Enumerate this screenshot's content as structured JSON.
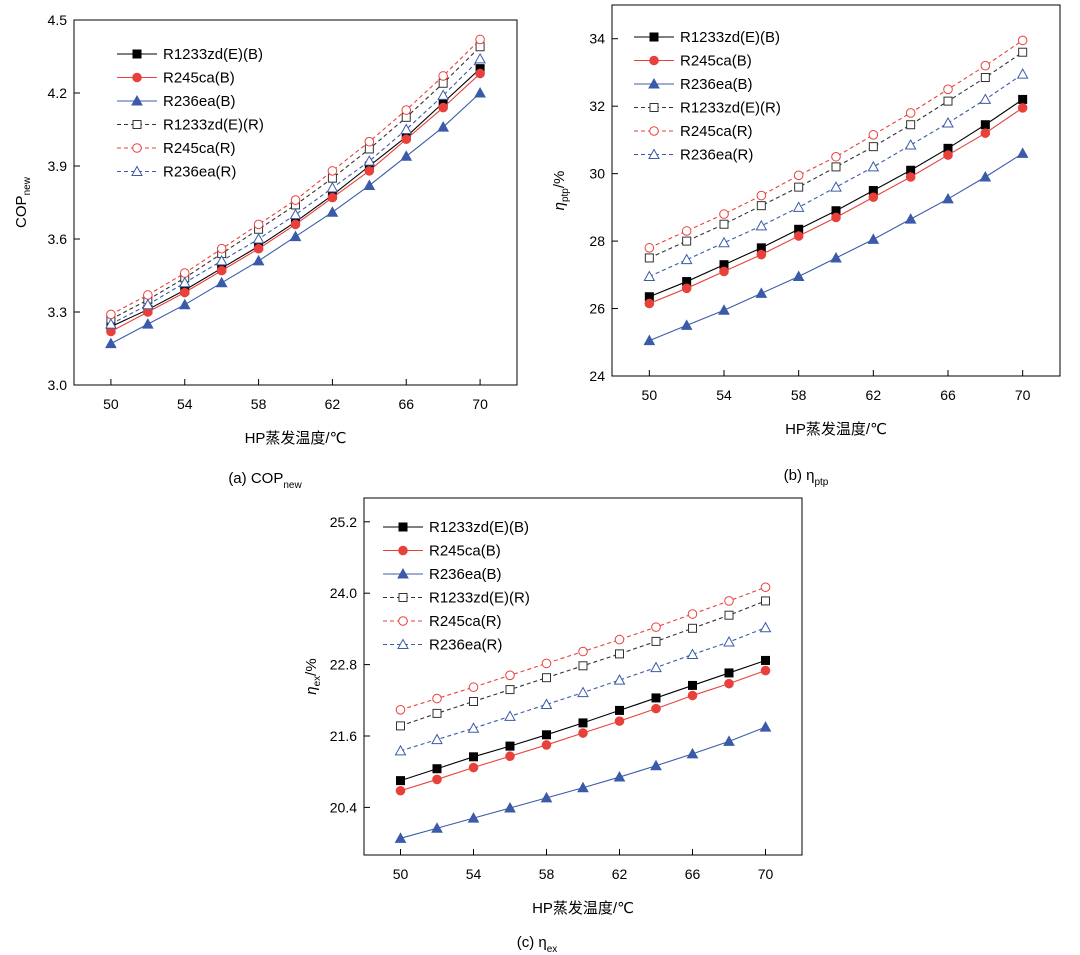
{
  "chart_data": [
    {
      "type": "line",
      "caption": "(a) COP",
      "caption_sub": "new",
      "ylabel": "COP",
      "ylabel_sub": "new",
      "ylabel_suffix": "",
      "xlabel": "HP蒸发温度/℃",
      "xlim": [
        48,
        72
      ],
      "xticks": [
        "50",
        "54",
        "58",
        "62",
        "66",
        "70"
      ],
      "ylim": [
        3.0,
        4.5
      ],
      "yticks": [
        "3.0",
        "3.3",
        "3.6",
        "3.9",
        "4.2",
        "4.5"
      ],
      "x": [
        50,
        52,
        54,
        56,
        58,
        60,
        62,
        64,
        66,
        68,
        70
      ],
      "series": [
        {
          "name": "R1233zd(E)(B)",
          "marker": "square",
          "filled": true,
          "dashed": false,
          "color": "#000000",
          "values": [
            3.24,
            3.31,
            3.39,
            3.48,
            3.57,
            3.67,
            3.78,
            3.9,
            4.02,
            4.16,
            4.3
          ]
        },
        {
          "name": "R245ca(B)",
          "marker": "circle",
          "filled": true,
          "dashed": false,
          "color": "#e8413c",
          "values": [
            3.22,
            3.3,
            3.38,
            3.47,
            3.56,
            3.66,
            3.77,
            3.88,
            4.01,
            4.14,
            4.28
          ]
        },
        {
          "name": "R236ea(B)",
          "marker": "triangle",
          "filled": true,
          "dashed": false,
          "color": "#3b5ba9",
          "values": [
            3.17,
            3.25,
            3.33,
            3.42,
            3.51,
            3.61,
            3.71,
            3.82,
            3.94,
            4.06,
            4.2
          ]
        },
        {
          "name": "R1233zd(E)(R)",
          "marker": "square",
          "filled": false,
          "dashed": true,
          "color": "#333333",
          "values": [
            3.27,
            3.35,
            3.44,
            3.54,
            3.64,
            3.74,
            3.85,
            3.97,
            4.1,
            4.24,
            4.39
          ]
        },
        {
          "name": "R245ca(R)",
          "marker": "circle",
          "filled": false,
          "dashed": true,
          "color": "#e8413c",
          "values": [
            3.29,
            3.37,
            3.46,
            3.56,
            3.66,
            3.76,
            3.88,
            4.0,
            4.13,
            4.27,
            4.42
          ]
        },
        {
          "name": "R236ea(R)",
          "marker": "triangle",
          "filled": false,
          "dashed": true,
          "color": "#3b5ba9",
          "values": [
            3.25,
            3.33,
            3.42,
            3.51,
            3.6,
            3.7,
            3.81,
            3.92,
            4.05,
            4.19,
            4.34
          ]
        }
      ]
    },
    {
      "type": "line",
      "caption": "(b) η",
      "caption_sub": "ptp",
      "ylabel": "η",
      "ylabel_sub": "ptp",
      "ylabel_suffix": "/%",
      "xlabel": "HP蒸发温度/℃",
      "xlim": [
        48,
        72
      ],
      "xticks": [
        "50",
        "54",
        "58",
        "62",
        "66",
        "70"
      ],
      "ylim": [
        24,
        35
      ],
      "yticks": [
        "24",
        "26",
        "28",
        "30",
        "32",
        "34"
      ],
      "x": [
        50,
        52,
        54,
        56,
        58,
        60,
        62,
        64,
        66,
        68,
        70
      ],
      "series": [
        {
          "name": "R1233zd(E)(B)",
          "marker": "square",
          "filled": true,
          "dashed": false,
          "color": "#000000",
          "values": [
            26.35,
            26.8,
            27.3,
            27.8,
            28.35,
            28.9,
            29.5,
            30.1,
            30.75,
            31.45,
            32.2
          ]
        },
        {
          "name": "R245ca(B)",
          "marker": "circle",
          "filled": true,
          "dashed": false,
          "color": "#e8413c",
          "values": [
            26.15,
            26.6,
            27.1,
            27.6,
            28.15,
            28.7,
            29.3,
            29.9,
            30.55,
            31.2,
            31.95
          ]
        },
        {
          "name": "R236ea(B)",
          "marker": "triangle",
          "filled": true,
          "dashed": false,
          "color": "#3b5ba9",
          "values": [
            25.05,
            25.5,
            25.95,
            26.45,
            26.95,
            27.5,
            28.05,
            28.65,
            29.25,
            29.9,
            30.6
          ]
        },
        {
          "name": "R1233zd(E)(R)",
          "marker": "square",
          "filled": false,
          "dashed": true,
          "color": "#333333",
          "values": [
            27.5,
            28.0,
            28.5,
            29.05,
            29.6,
            30.2,
            30.8,
            31.45,
            32.15,
            32.85,
            33.6
          ]
        },
        {
          "name": "R245ca(R)",
          "marker": "circle",
          "filled": false,
          "dashed": true,
          "color": "#e8413c",
          "values": [
            27.8,
            28.3,
            28.8,
            29.35,
            29.95,
            30.5,
            31.15,
            31.8,
            32.5,
            33.2,
            33.95
          ]
        },
        {
          "name": "R236ea(R)",
          "marker": "triangle",
          "filled": false,
          "dashed": true,
          "color": "#3b5ba9",
          "values": [
            26.95,
            27.45,
            27.95,
            28.45,
            29.0,
            29.6,
            30.2,
            30.85,
            31.5,
            32.2,
            32.95
          ]
        }
      ]
    },
    {
      "type": "line",
      "caption": "(c) η",
      "caption_sub": "ex",
      "ylabel": "η",
      "ylabel_sub": "ex",
      "ylabel_suffix": "/%",
      "xlabel": "HP蒸发温度/℃",
      "xlim": [
        48,
        72
      ],
      "xticks": [
        "50",
        "54",
        "58",
        "62",
        "66",
        "70"
      ],
      "ylim": [
        19.6,
        25.6
      ],
      "yticks": [
        "20.4",
        "21.6",
        "22.8",
        "24.0",
        "25.2"
      ],
      "x": [
        50,
        52,
        54,
        56,
        58,
        60,
        62,
        64,
        66,
        68,
        70
      ],
      "series": [
        {
          "name": "R1233zd(E)(B)",
          "marker": "square",
          "filled": true,
          "dashed": false,
          "color": "#000000",
          "values": [
            20.85,
            21.05,
            21.25,
            21.43,
            21.62,
            21.82,
            22.03,
            22.24,
            22.45,
            22.66,
            22.87
          ]
        },
        {
          "name": "R245ca(B)",
          "marker": "circle",
          "filled": true,
          "dashed": false,
          "color": "#e8413c",
          "values": [
            20.68,
            20.87,
            21.07,
            21.26,
            21.45,
            21.65,
            21.85,
            22.06,
            22.28,
            22.48,
            22.7
          ]
        },
        {
          "name": "R236ea(B)",
          "marker": "triangle",
          "filled": true,
          "dashed": false,
          "color": "#3b5ba9",
          "values": [
            19.88,
            20.05,
            20.22,
            20.39,
            20.56,
            20.73,
            20.91,
            21.1,
            21.3,
            21.51,
            21.75
          ]
        },
        {
          "name": "R1233zd(E)(R)",
          "marker": "square",
          "filled": false,
          "dashed": true,
          "color": "#333333",
          "values": [
            21.77,
            21.98,
            22.18,
            22.38,
            22.58,
            22.78,
            22.98,
            23.19,
            23.41,
            23.63,
            23.87
          ]
        },
        {
          "name": "R245ca(R)",
          "marker": "circle",
          "filled": false,
          "dashed": true,
          "color": "#e8413c",
          "values": [
            22.04,
            22.23,
            22.42,
            22.62,
            22.82,
            23.02,
            23.22,
            23.43,
            23.65,
            23.87,
            24.1
          ]
        },
        {
          "name": "R236ea(R)",
          "marker": "triangle",
          "filled": false,
          "dashed": true,
          "color": "#3b5ba9",
          "values": [
            21.35,
            21.54,
            21.73,
            21.93,
            22.13,
            22.33,
            22.54,
            22.75,
            22.97,
            23.18,
            23.42
          ]
        }
      ]
    }
  ]
}
